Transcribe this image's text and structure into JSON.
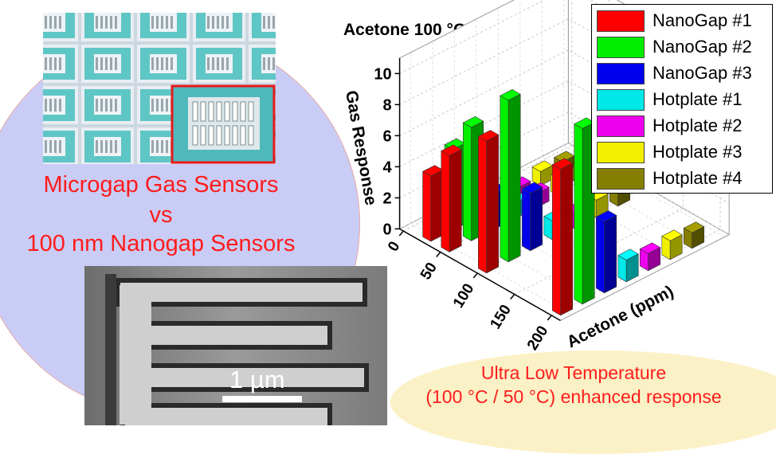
{
  "headline": {
    "line1": "Microgap Gas Sensors",
    "line2": "vs",
    "line3": "100 nm Nanogap Sensors"
  },
  "scalebar_label": "1 µm",
  "footer": {
    "line1": "Ultra Low Temperature",
    "line2": "(100 °C / 50 °C) enhanced response"
  },
  "colors": {
    "headline": "#ff1c1c",
    "background_circle": "#c9cdf5",
    "footer_ellipse": "#fbf1c6"
  },
  "chart_data": {
    "type": "bar3d",
    "title": "Acetone 100 °C",
    "zlabel": "Gas Response",
    "xlabel": "Acetone (ppm)",
    "x_ticks": [
      "0",
      "50",
      "100",
      "150",
      "200"
    ],
    "z_ticks": [
      "0",
      "2",
      "4",
      "6",
      "8",
      "10"
    ],
    "zlim": [
      0,
      11
    ],
    "concentrations": [
      25,
      50,
      100,
      200
    ],
    "series": [
      {
        "name": "NanoGap #1",
        "color": "#ff0000",
        "values": [
          4.2,
          6.2,
          8.5,
          9.4
        ]
      },
      {
        "name": "NanoGap #2",
        "color": "#00ee00",
        "values": [
          5.2,
          7.3,
          10.4,
          11.3
        ]
      },
      {
        "name": "NanoGap #3",
        "color": "#0000ee",
        "values": [
          1.3,
          2.3,
          3.7,
          4.6
        ]
      },
      {
        "name": "Hotplate #1",
        "color": "#00e8e8",
        "values": [
          0.7,
          1.0,
          1.2,
          1.4
        ]
      },
      {
        "name": "Hotplate #2",
        "color": "#ee00ee",
        "values": [
          0.6,
          0.9,
          1.0,
          1.1
        ]
      },
      {
        "name": "Hotplate #3",
        "color": "#f0f000",
        "values": [
          0.9,
          1.1,
          1.1,
          1.2
        ]
      },
      {
        "name": "Hotplate #4",
        "color": "#857e00",
        "values": [
          0.8,
          0.9,
          1.0,
          1.0
        ]
      }
    ],
    "legend_position": "top-right",
    "grid": true
  }
}
